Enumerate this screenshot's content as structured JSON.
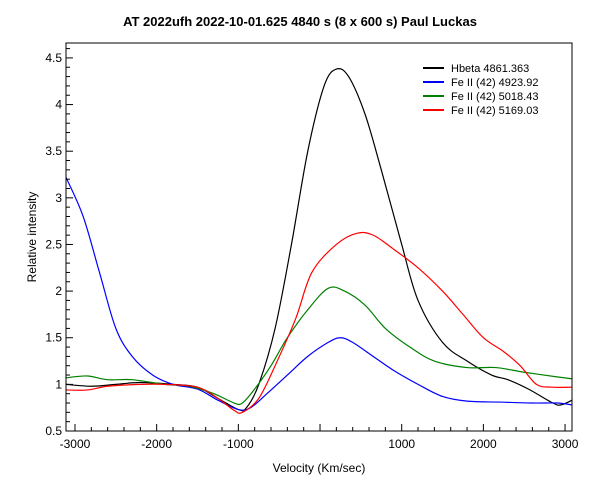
{
  "chart_data": {
    "type": "line",
    "title": "AT 2022ufh   2022-10-01.625   4840 s (8 x 600 s)   Paul Luckas",
    "xlabel": "Velocity (Km/sec)",
    "ylabel": "Relative intensity",
    "xlim": [
      -3110,
      3085
    ],
    "ylim": [
      0.5,
      4.66
    ],
    "x_ticks": [
      -3000,
      -2000,
      -1000,
      1000,
      2000,
      3000
    ],
    "x_tick_labels": [
      "-3000",
      "-2000",
      "-1000",
      "1000",
      "2000",
      "3000"
    ],
    "y_ticks": [
      0.5,
      1,
      1.5,
      2,
      2.5,
      3,
      3.5,
      4,
      4.5
    ],
    "y_tick_labels": [
      "0.5",
      "1",
      "1.5",
      "2",
      "2.5",
      "3",
      "3.5",
      "4",
      "4.5"
    ],
    "grid": false,
    "legend_position": "top-right",
    "series": [
      {
        "name": "Hbeta  4861.363",
        "color": "#000000",
        "x": [
          -3110,
          -2800,
          -2500,
          -2200,
          -1800,
          -1500,
          -1250,
          -1000,
          -900,
          -750,
          -550,
          -350,
          -150,
          50,
          200,
          350,
          550,
          750,
          1000,
          1200,
          1500,
          1800,
          2100,
          2300,
          2550,
          2850,
          2950,
          3085
        ],
        "y": [
          1.0,
          0.98,
          1.0,
          1.02,
          1.0,
          0.97,
          0.85,
          0.73,
          0.75,
          1.0,
          1.6,
          2.5,
          3.5,
          4.2,
          4.38,
          4.3,
          3.9,
          3.3,
          2.5,
          1.9,
          1.45,
          1.25,
          1.1,
          1.05,
          0.95,
          0.8,
          0.78,
          0.83
        ]
      },
      {
        "name": "Fe II (42)  4923.92",
        "color": "#0000ff",
        "x": [
          -3110,
          -2900,
          -2700,
          -2500,
          -2300,
          -2050,
          -1800,
          -1500,
          -1250,
          -1000,
          -850,
          -650,
          -400,
          -150,
          100,
          250,
          400,
          650,
          900,
          1200,
          1500,
          1800,
          2200,
          2600,
          2900,
          3085
        ],
        "y": [
          3.22,
          2.8,
          2.2,
          1.6,
          1.3,
          1.1,
          1.0,
          0.95,
          0.83,
          0.73,
          0.75,
          0.9,
          1.1,
          1.3,
          1.45,
          1.5,
          1.45,
          1.3,
          1.15,
          1.0,
          0.87,
          0.82,
          0.81,
          0.8,
          0.8,
          0.78
        ]
      },
      {
        "name": "Fe II (42)  5018.43",
        "color": "#008000",
        "x": [
          -3110,
          -2850,
          -2600,
          -2300,
          -1900,
          -1600,
          -1300,
          -1050,
          -950,
          -800,
          -600,
          -400,
          -150,
          100,
          300,
          550,
          800,
          1100,
          1400,
          1800,
          2150,
          2500,
          2900,
          3085
        ],
        "y": [
          1.07,
          1.09,
          1.05,
          1.05,
          1.0,
          0.98,
          0.9,
          0.8,
          0.8,
          0.95,
          1.2,
          1.5,
          1.8,
          2.03,
          2.0,
          1.85,
          1.6,
          1.4,
          1.25,
          1.18,
          1.18,
          1.13,
          1.08,
          1.06
        ]
      },
      {
        "name": "Fe II (42)  5169.03",
        "color": "#ff0000",
        "x": [
          -3110,
          -2850,
          -2600,
          -2200,
          -1900,
          -1500,
          -1250,
          -1050,
          -950,
          -750,
          -550,
          -300,
          -100,
          200,
          450,
          650,
          900,
          1200,
          1500,
          1750,
          2000,
          2250,
          2450,
          2650,
          2850,
          3085
        ],
        "y": [
          0.94,
          0.94,
          0.98,
          1.0,
          1.0,
          0.97,
          0.85,
          0.72,
          0.7,
          0.85,
          1.2,
          1.7,
          2.2,
          2.5,
          2.62,
          2.6,
          2.45,
          2.25,
          2.0,
          1.75,
          1.5,
          1.35,
          1.2,
          1.0,
          0.97,
          0.97
        ]
      }
    ]
  }
}
